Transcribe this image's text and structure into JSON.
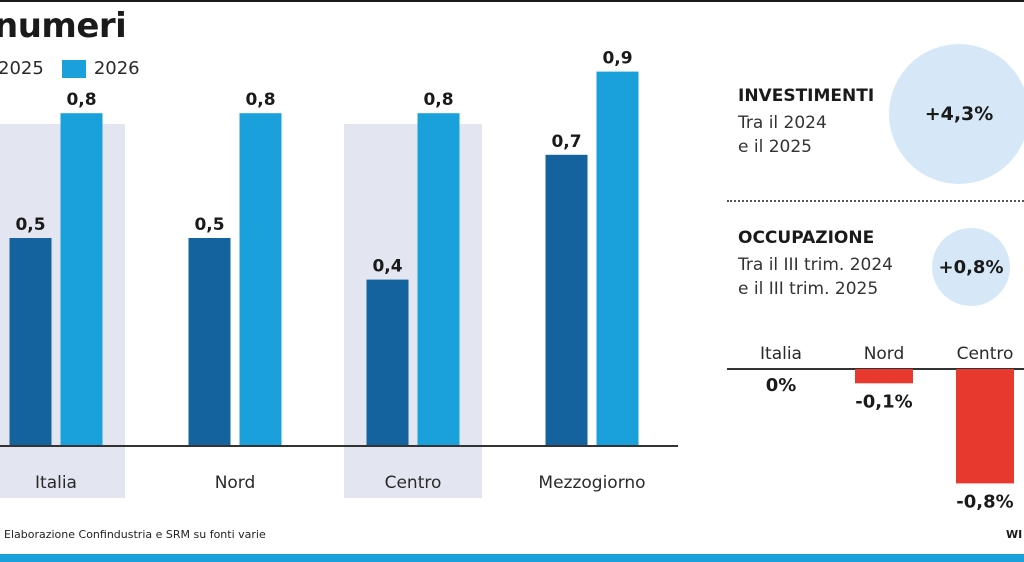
{
  "title": "numeri",
  "legend": {
    "label1": "2025",
    "label2": "2026"
  },
  "colors": {
    "s2025": "#14639e",
    "s2026": "#1aa1dc",
    "band": "#e3e6f0",
    "positive_circle": "#d6e8f7",
    "negative": "#e8392f"
  },
  "chart_data": [
    {
      "type": "bar",
      "categories": [
        "Italia",
        "Nord",
        "Centro",
        "Mezzogiorno"
      ],
      "series": [
        {
          "name": "2025",
          "values": [
            0.5,
            0.5,
            0.4,
            0.7
          ],
          "labels": [
            "0,5",
            "0,5",
            "0,4",
            "0,7"
          ]
        },
        {
          "name": "2026",
          "values": [
            0.8,
            0.8,
            0.8,
            0.9
          ],
          "labels": [
            "0,8",
            "0,8",
            "0,8",
            "0,9"
          ]
        }
      ],
      "ylim": [
        0,
        1.0
      ],
      "grid": false
    },
    {
      "type": "bar",
      "categories": [
        "Italia",
        "Nord",
        "Centro"
      ],
      "values": [
        0,
        -0.1,
        -0.8
      ],
      "labels": [
        "0%",
        "-0,1%",
        "-0,8%"
      ],
      "grid": false
    }
  ],
  "investimenti": {
    "label": "INVESTIMENTI",
    "line1": "Tra il 2024",
    "line2": "e il 2025",
    "value": "+4,3%"
  },
  "occupazione": {
    "label": "OCCUPAZIONE",
    "line1": "Tra il III trim. 2024",
    "line2": "e il III trim. 2025",
    "value": "+0,8%"
  },
  "source": "Elaborazione Confindustria e SRM su fonti varie",
  "logo": "WI"
}
